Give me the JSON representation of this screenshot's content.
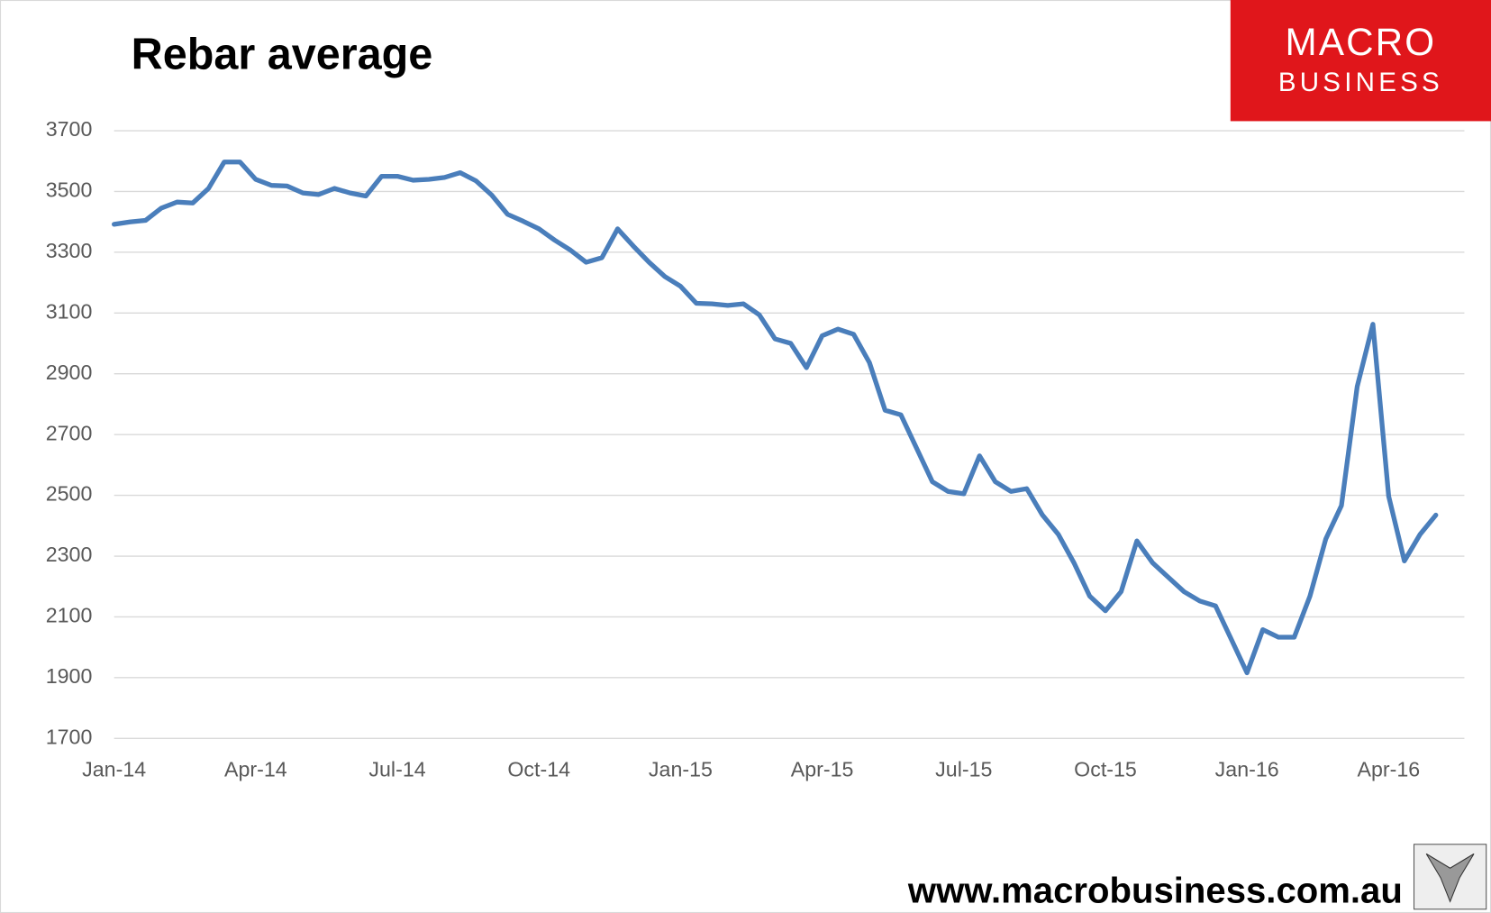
{
  "chart_data": {
    "type": "line",
    "title": "Rebar average",
    "categories": [
      "Jan-14",
      null,
      null,
      null,
      null,
      null,
      null,
      null,
      null,
      "Apr-14",
      null,
      null,
      null,
      null,
      null,
      null,
      null,
      null,
      "Jul-14",
      null,
      null,
      null,
      null,
      null,
      null,
      null,
      null,
      "Oct-14",
      null,
      null,
      null,
      null,
      null,
      null,
      null,
      null,
      "Jan-15",
      null,
      null,
      null,
      null,
      null,
      null,
      null,
      null,
      "Apr-15",
      null,
      null,
      null,
      null,
      null,
      null,
      null,
      null,
      "Jul-15",
      null,
      null,
      null,
      null,
      null,
      null,
      null,
      null,
      "Oct-15",
      null,
      null,
      null,
      null,
      null,
      null,
      null,
      null,
      "Jan-16",
      null,
      null,
      null,
      null,
      null,
      null,
      null,
      null,
      "Apr-16",
      null,
      null,
      null
    ],
    "values": [
      3392,
      3400,
      3405,
      3445,
      3465,
      3462,
      3510,
      3597,
      3597,
      3540,
      3520,
      3518,
      3495,
      3490,
      3510,
      3495,
      3485,
      3550,
      3550,
      3537,
      3540,
      3546,
      3562,
      3535,
      3488,
      3425,
      3402,
      3377,
      3340,
      3307,
      3267,
      3282,
      3377,
      3320,
      3267,
      3220,
      3188,
      3132,
      3130,
      3125,
      3130,
      3094,
      3015,
      3000,
      2920,
      3025,
      3047,
      3030,
      2937,
      2780,
      2765,
      2655,
      2545,
      2513,
      2505,
      2630,
      2545,
      2513,
      2522,
      2435,
      2372,
      2278,
      2168,
      2120,
      2183,
      2350,
      2278,
      2230,
      2183,
      2152,
      2136,
      2026,
      1916,
      2058,
      2033,
      2033,
      2168,
      2356,
      2466,
      2858,
      3063,
      2497,
      2284,
      2372,
      2435
    ],
    "color": "#4a7ebb",
    "ylim": [
      1700,
      3700
    ],
    "yticks": [
      1700,
      1900,
      2100,
      2300,
      2500,
      2700,
      2900,
      3100,
      3300,
      3500,
      3700
    ],
    "grid": true
  },
  "branding": {
    "logo_top": "MACRO",
    "logo_bottom": "BUSINESS",
    "url": "www.macrobusiness.com.au"
  }
}
